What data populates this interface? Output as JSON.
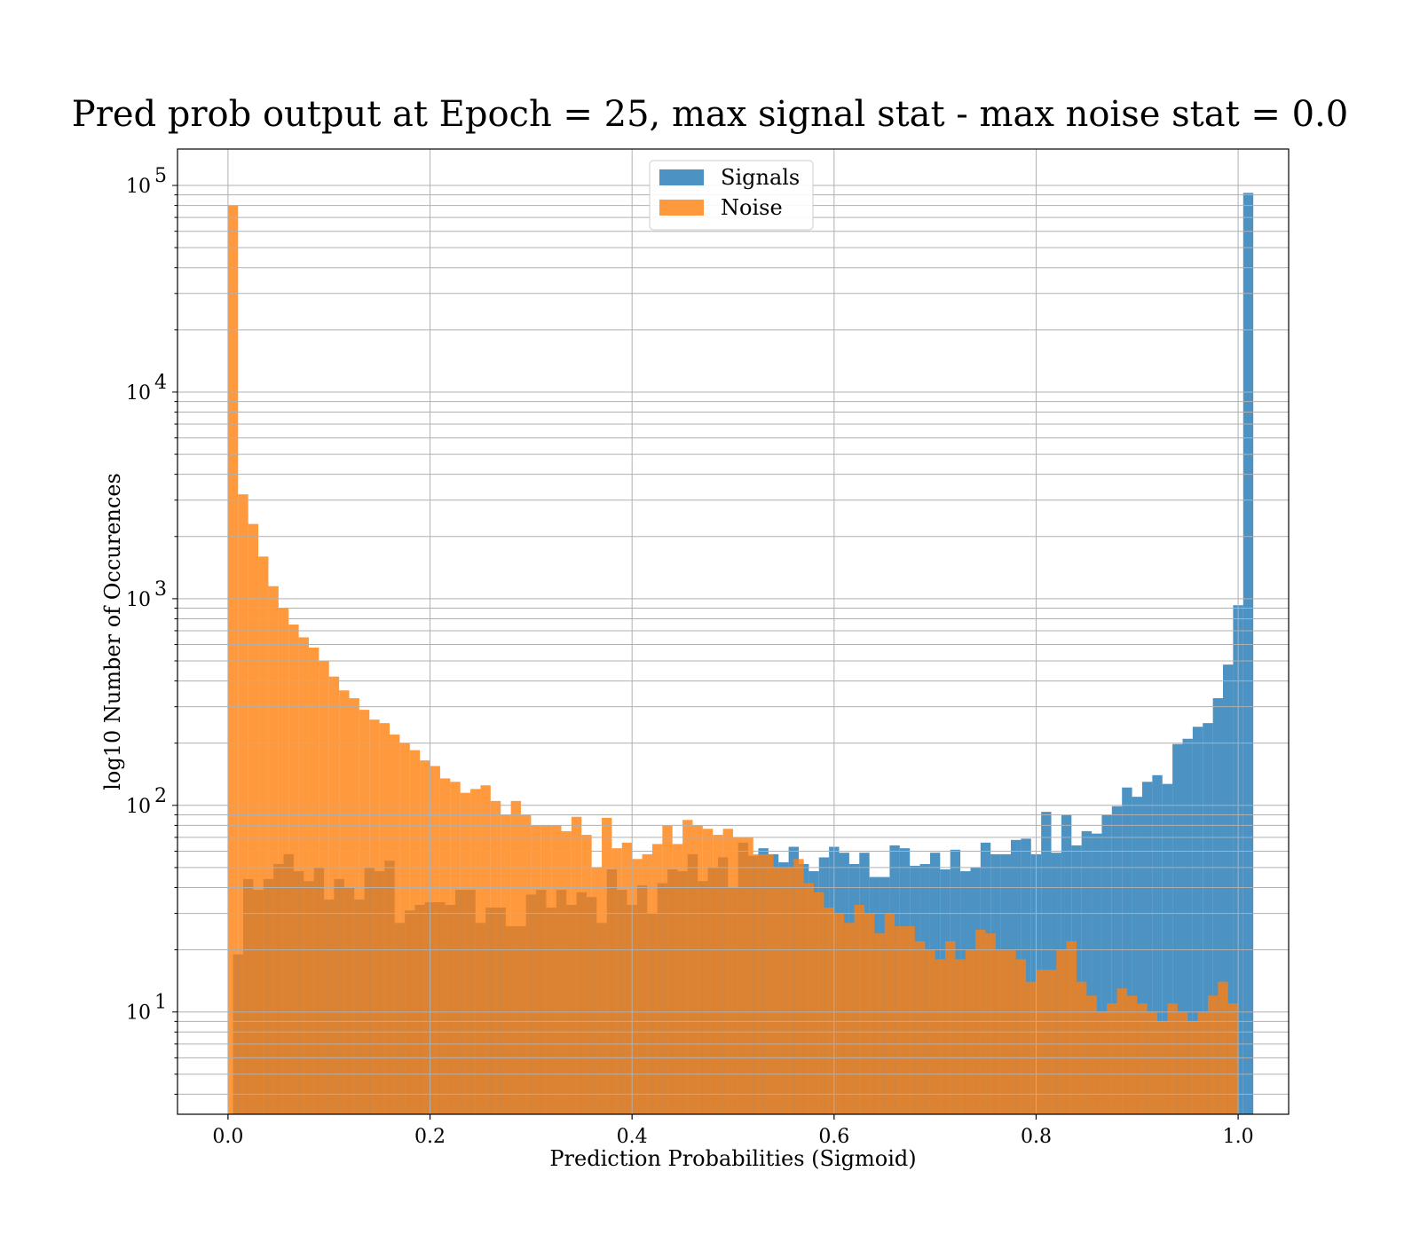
{
  "chart_data": {
    "type": "bar",
    "title": "Pred prob output at Epoch = 25, max signal stat - max noise stat = 0.0",
    "xlabel": "Prediction Probabilities (Sigmoid)",
    "ylabel": "log10 Number of Occurences",
    "xlim": [
      -0.05,
      1.05
    ],
    "ylim": [
      3.2,
      150000
    ],
    "yscale": "log",
    "grid": true,
    "legend_position": "top-center",
    "x_ticks": [
      0.0,
      0.2,
      0.4,
      0.6,
      0.8,
      1.0
    ],
    "x_tick_labels": [
      "0.0",
      "0.2",
      "0.4",
      "0.6",
      "0.8",
      "1.0"
    ],
    "y_ticks": [
      {
        "value": 10,
        "base": "10",
        "exp": "1"
      },
      {
        "value": 100,
        "base": "10",
        "exp": "2"
      },
      {
        "value": 1000,
        "base": "10",
        "exp": "3"
      },
      {
        "value": 10000,
        "base": "10",
        "exp": "4"
      },
      {
        "value": 100000,
        "base": "10",
        "exp": "5"
      }
    ],
    "series": [
      {
        "name": "Signals",
        "color": "#1f77b4",
        "alpha": 0.8,
        "bin_start": 0.005,
        "bin_width": 0.01,
        "values": [
          19,
          44,
          39,
          44,
          52,
          58,
          48,
          43,
          50,
          35,
          44,
          40,
          35,
          50,
          48,
          54,
          27,
          31,
          33,
          34,
          34,
          33,
          39,
          39,
          27,
          32,
          32,
          26,
          26,
          37,
          39,
          32,
          39,
          33,
          38,
          36,
          27,
          49,
          39,
          33,
          41,
          30,
          42,
          49,
          48,
          58,
          43,
          50,
          56,
          40,
          66,
          57,
          62,
          58,
          53,
          63,
          52,
          48,
          56,
          63,
          59,
          52,
          59,
          45,
          45,
          64,
          62,
          51,
          52,
          59,
          49,
          61,
          48,
          50,
          66,
          58,
          58,
          68,
          69,
          58,
          93,
          59,
          90,
          64,
          75,
          73,
          90,
          99,
          122,
          110,
          130,
          140,
          127,
          198,
          210,
          240,
          250,
          330,
          480,
          930,
          92000
        ]
      },
      {
        "name": "Noise",
        "color": "#ff7f0e",
        "alpha": 0.8,
        "bin_start": 0.0,
        "bin_width": 0.01,
        "values": [
          80000,
          3200,
          2300,
          1600,
          1150,
          900,
          750,
          650,
          580,
          500,
          420,
          360,
          330,
          290,
          260,
          250,
          220,
          200,
          185,
          165,
          155,
          135,
          130,
          115,
          120,
          125,
          105,
          90,
          105,
          90,
          80,
          80,
          80,
          75,
          88,
          72,
          50,
          87,
          62,
          66,
          55,
          58,
          65,
          80,
          65,
          85,
          80,
          77,
          72,
          77,
          70,
          70,
          58,
          58,
          50,
          50,
          55,
          42,
          38,
          32,
          30,
          27,
          33,
          30,
          24,
          30,
          26,
          26,
          22,
          20,
          18,
          22,
          18,
          20,
          25,
          24,
          20,
          20,
          18,
          14,
          16,
          16,
          20,
          22,
          14,
          12,
          10,
          11,
          13,
          12,
          11,
          10,
          9,
          11,
          10,
          9,
          10,
          12,
          14,
          11
        ]
      }
    ]
  }
}
